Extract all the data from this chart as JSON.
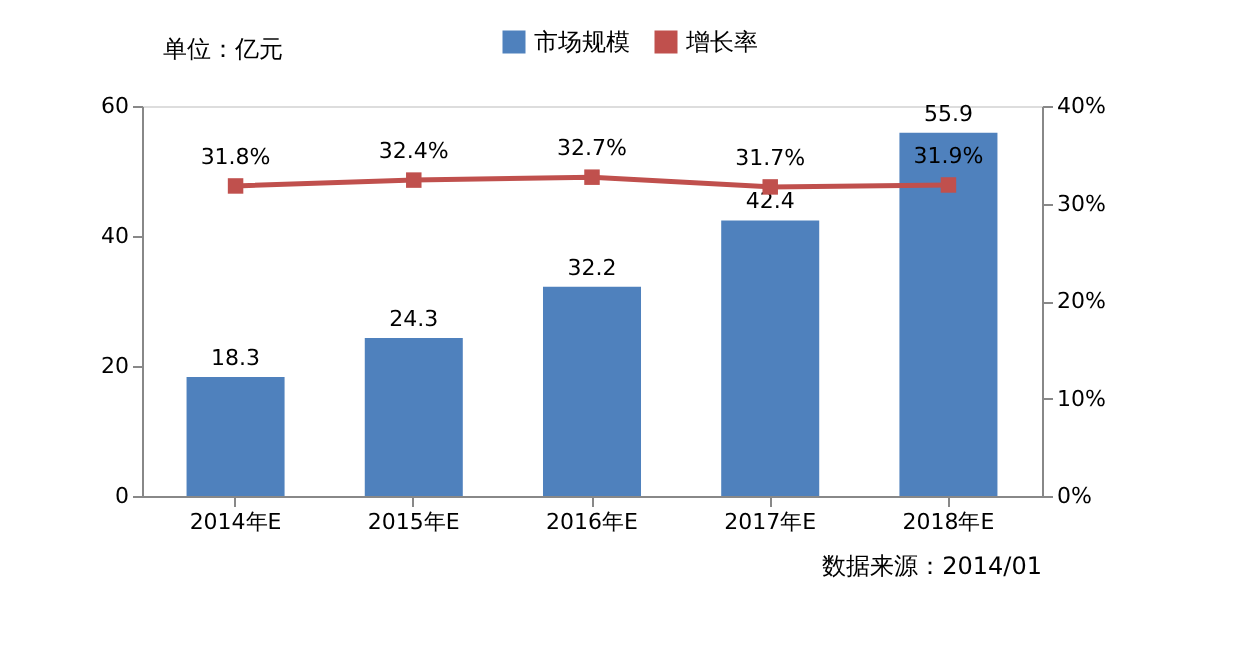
{
  "chart_data": {
    "type": "bar",
    "categories": [
      "2014年E",
      "2015年E",
      "2016年E",
      "2017年E",
      "2018年E"
    ],
    "ylabel": "单位：亿元",
    "series": [
      {
        "name": "市场规模",
        "color": "#4f81bd",
        "values": [
          18.3,
          24.3,
          32.2,
          42.4,
          55.9
        ]
      },
      {
        "name": "增长率",
        "type": "line",
        "axis": "y2",
        "color": "#c0504d",
        "marker": "square",
        "values": [
          31.8,
          32.4,
          32.7,
          31.7,
          31.9
        ],
        "value_labels": [
          "31.8%",
          "32.4%",
          "32.7%",
          "31.7%",
          "31.9%"
        ]
      }
    ],
    "data_labels": true,
    "ylim": [
      0,
      60
    ],
    "yticks": [
      0,
      20,
      40,
      60
    ],
    "y2lim": [
      0,
      40
    ],
    "y2ticks": [
      {
        "value": 0,
        "label": "0%"
      },
      {
        "value": 10,
        "label": "10%"
      },
      {
        "value": 20,
        "label": "20%"
      },
      {
        "value": 30,
        "label": "30%"
      },
      {
        "value": 40,
        "label": "40%"
      }
    ],
    "grid": false,
    "legend": "top",
    "annotations": [
      "数据来源：2014/01"
    ]
  }
}
